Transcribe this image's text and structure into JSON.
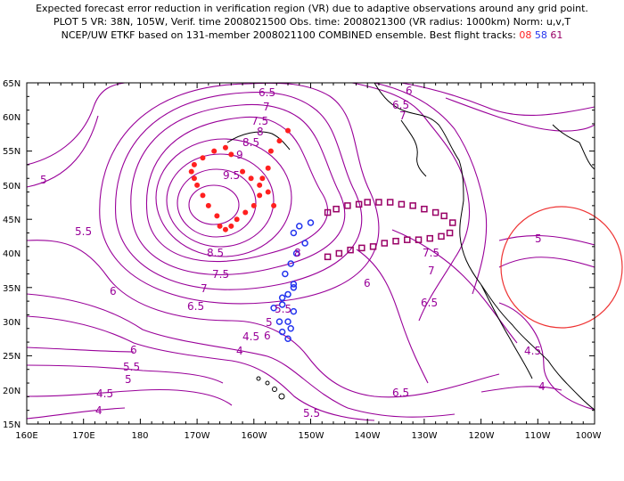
{
  "header": {
    "line1": "Expected forecast error reduction in verification region (VR) due to adaptive observations around any grid point.",
    "line2": "PLOT 5 VR: 38N, 105W, Verif. time 2008021500 Obs. time: 2008021300 (VR radius: 1000km) Norm: u,v,T",
    "line3_prefix": "NCEP/UW ETKF based on 131-member 2008021100 COMBINED ensemble.  Best flight tracks:",
    "track_08": "08",
    "track_58": "58",
    "track_61": "61"
  },
  "axes": {
    "lat_labels": [
      "65N",
      "60N",
      "55N",
      "50N",
      "45N",
      "40N",
      "35N",
      "30N",
      "25N",
      "20N",
      "15N"
    ],
    "lon_labels": [
      "160E",
      "170E",
      "180",
      "170W",
      "160W",
      "150W",
      "140W",
      "130W",
      "120W",
      "110W",
      "100W"
    ]
  },
  "contour_labels": [
    "6.5",
    "7",
    "7.5",
    "8",
    "8.5",
    "9",
    "9.5",
    "5",
    "5.5",
    "6",
    "6.5",
    "7",
    "8.5",
    "7.5",
    "7",
    "6",
    "6.5",
    "8",
    "5.5",
    "5",
    "6",
    "6.5",
    "7.5",
    "7",
    "6.5",
    "5",
    "6",
    "5.5",
    "5",
    "4.5",
    "4",
    "4.5",
    "4",
    "6",
    "5.5",
    "4.5",
    "4"
  ],
  "colors": {
    "contour": "#990099",
    "coast": "#000000",
    "track_08": "#ff2020",
    "track_58": "#2233ee",
    "track_61": "#990066",
    "verification_circle": "#ee3333"
  },
  "verification_region": {
    "center_lat": 38,
    "center_lon": -105,
    "radius_km": 1000
  },
  "tracks": {
    "t08": {
      "lon": [
        -154,
        -155.5,
        -157,
        -157.5,
        -158.5,
        -159,
        -160,
        -161.5,
        -163,
        -164,
        -165,
        -166,
        -166.5,
        -168,
        -169,
        -170,
        -170.5,
        -171,
        -170.5,
        -169,
        -167,
        -165,
        -164,
        -162,
        -160.5,
        -159,
        -157.5,
        -156.5
      ],
      "lat": [
        58,
        56.5,
        55,
        52.5,
        51,
        48.5,
        47,
        46,
        45,
        44,
        43.5,
        44,
        45.5,
        47,
        48.5,
        50,
        51,
        52,
        53,
        54,
        55,
        55.5,
        54.5,
        52,
        51,
        50,
        49,
        47
      ]
    },
    "t58": {
      "lon": [
        -150,
        -152,
        -153,
        -151,
        -152.5,
        -153.5,
        -154.5,
        -153,
        -154,
        -155,
        -153,
        -154,
        -153.5,
        -155,
        -154,
        -155.5,
        -156.5,
        -155,
        -153
      ],
      "lat": [
        44.5,
        44,
        43,
        41.5,
        40,
        38.5,
        37,
        35.5,
        34,
        32.5,
        31.5,
        30,
        29,
        28.5,
        27.5,
        30,
        32,
        33.5,
        35
      ]
    },
    "t61": {
      "lon": [
        -147,
        -145.5,
        -143.5,
        -141.5,
        -140,
        -138,
        -136,
        -134,
        -132,
        -130,
        -128,
        -126.5,
        -125,
        -125.5,
        -127,
        -129,
        -131,
        -133,
        -135,
        -137,
        -139,
        -141,
        -143,
        -145,
        -147
      ],
      "lat": [
        46,
        46.5,
        47,
        47.2,
        47.5,
        47.5,
        47.5,
        47.2,
        47,
        46.5,
        46,
        45.5,
        44.5,
        43,
        42.5,
        42.2,
        42,
        42,
        41.8,
        41.5,
        41,
        40.8,
        40.5,
        40,
        39.5
      ]
    }
  }
}
